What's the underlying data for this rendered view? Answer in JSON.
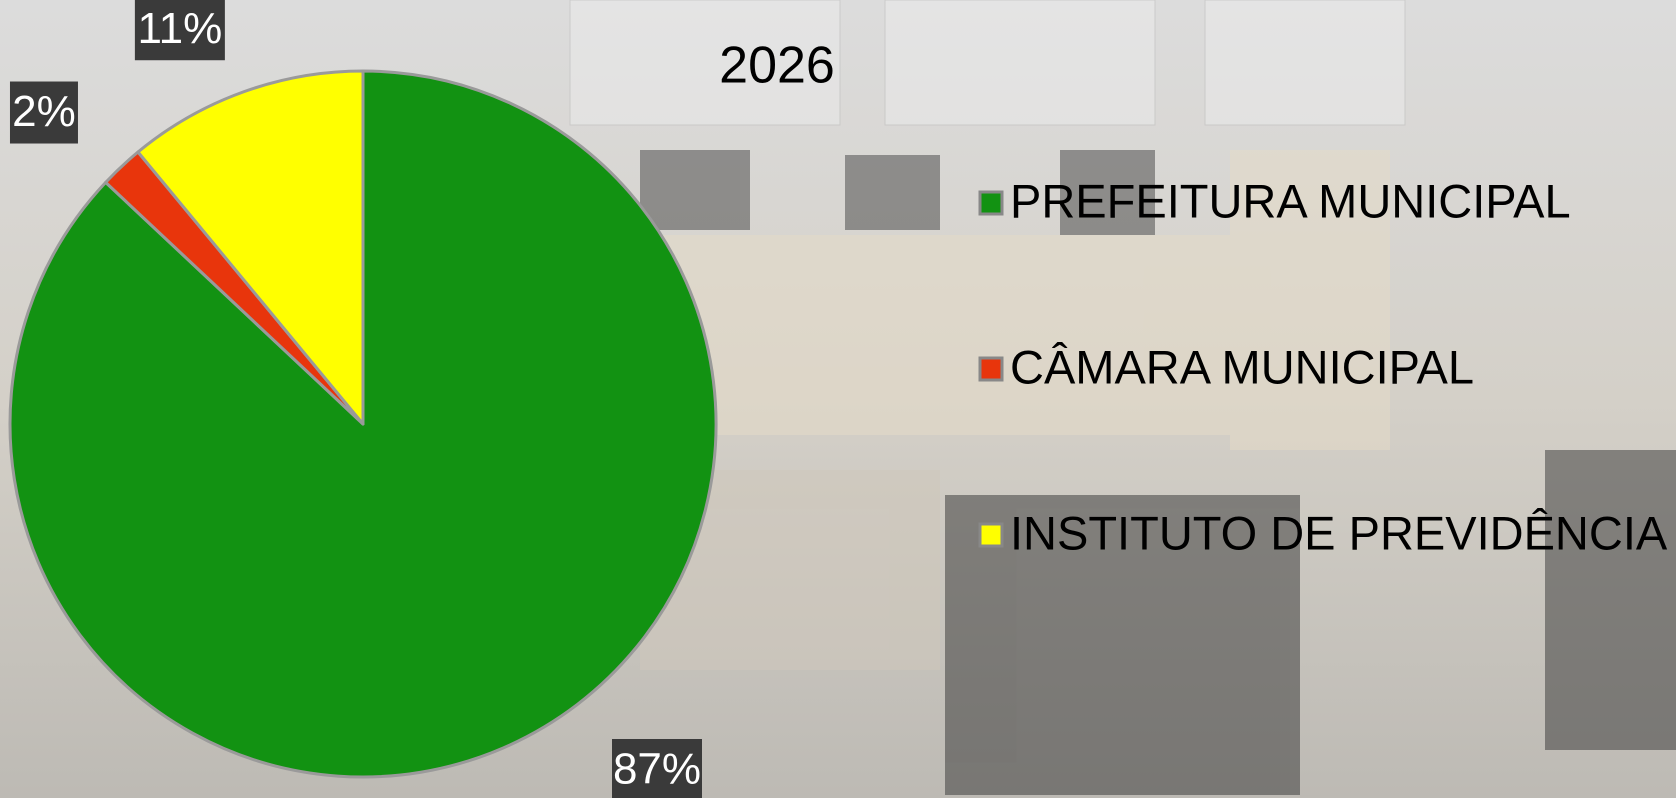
{
  "chart_data": {
    "type": "pie",
    "title": "2026",
    "categories": [
      "PREFEITURA MUNICIPAL",
      "CÂMARA MUNICIPAL",
      "INSTITUTO DE PREVIDÊNCIA"
    ],
    "values": [
      87,
      2,
      11
    ],
    "value_labels": [
      "87%",
      "2%",
      "11%"
    ],
    "colors": [
      "#129212",
      "#e8350c",
      "#ffff00"
    ],
    "legend": "right"
  }
}
